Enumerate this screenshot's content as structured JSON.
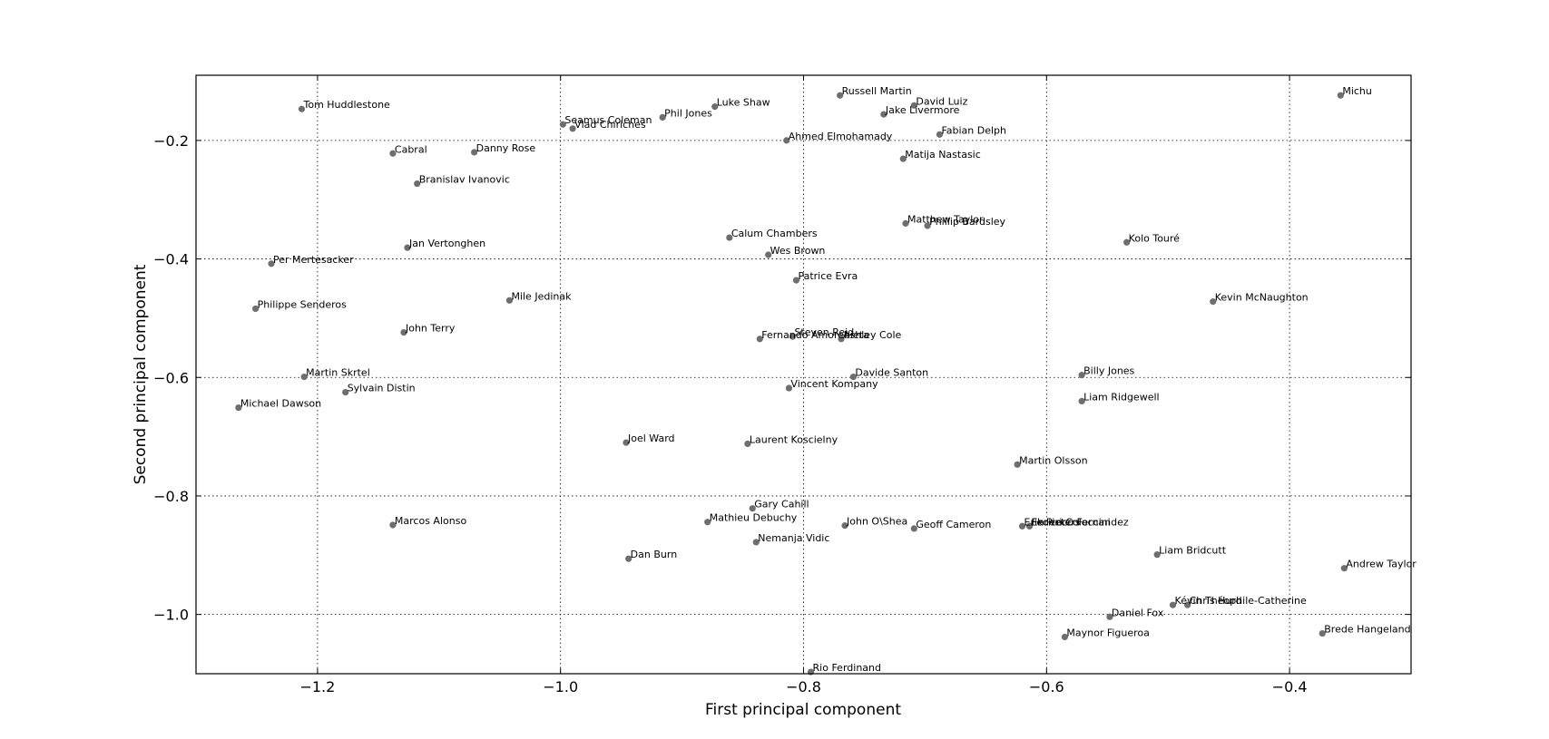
{
  "chart_data": {
    "type": "scatter",
    "title": "",
    "xlabel": "First principal component",
    "ylabel": "Second principal component",
    "xlim": [
      -1.3,
      -0.3
    ],
    "ylim": [
      -1.1,
      -0.09
    ],
    "xticks": [
      -1.2,
      -1.0,
      -0.8,
      -0.6,
      -0.4
    ],
    "yticks": [
      -0.2,
      -0.4,
      -0.6,
      -0.8,
      -1.0
    ],
    "xtick_labels": [
      "−1.2",
      "−1.0",
      "−0.8",
      "−0.6",
      "−0.4"
    ],
    "ytick_labels": [
      "−0.2",
      "−0.4",
      "−0.6",
      "−0.8",
      "−1.0"
    ],
    "grid": true,
    "marker_color": "#6e6e6e",
    "points": [
      {
        "label": "Tom Huddlestone",
        "x": -1.213,
        "y": -0.147
      },
      {
        "label": "Luke Shaw",
        "x": -0.873,
        "y": -0.143
      },
      {
        "label": "Russell Martin",
        "x": -0.77,
        "y": -0.124
      },
      {
        "label": "David Luiz",
        "x": -0.709,
        "y": -0.141
      },
      {
        "label": "Jake Livermore",
        "x": -0.734,
        "y": -0.156
      },
      {
        "label": "Michu",
        "x": -0.358,
        "y": -0.124
      },
      {
        "label": "Phil Jones",
        "x": -0.916,
        "y": -0.161
      },
      {
        "label": "Seamus Coleman",
        "x": -0.998,
        "y": -0.173
      },
      {
        "label": "Vlad Chiriches",
        "x": -0.99,
        "y": -0.18
      },
      {
        "label": "Fabian Delph",
        "x": -0.688,
        "y": -0.19
      },
      {
        "label": "Ahmed Elmohamady",
        "x": -0.814,
        "y": -0.2
      },
      {
        "label": "Cabral",
        "x": -1.138,
        "y": -0.222
      },
      {
        "label": "Danny Rose",
        "x": -1.071,
        "y": -0.22
      },
      {
        "label": "Matija Nastasic",
        "x": -0.718,
        "y": -0.231
      },
      {
        "label": "Branislav Ivanovic",
        "x": -1.118,
        "y": -0.273
      },
      {
        "label": "Matthew Taylor",
        "x": -0.716,
        "y": -0.34
      },
      {
        "label": "Phillip Bardsley",
        "x": -0.698,
        "y": -0.344
      },
      {
        "label": "Calum Chambers",
        "x": -0.861,
        "y": -0.364
      },
      {
        "label": "Kolo Touré",
        "x": -0.534,
        "y": -0.372
      },
      {
        "label": "Jan Vertonghen",
        "x": -1.126,
        "y": -0.381
      },
      {
        "label": "Wes Brown",
        "x": -0.829,
        "y": -0.393
      },
      {
        "label": "Per Mertesacker",
        "x": -1.238,
        "y": -0.408
      },
      {
        "label": "Patrice Evra",
        "x": -0.806,
        "y": -0.436
      },
      {
        "label": "Mile Jedinak",
        "x": -1.042,
        "y": -0.47
      },
      {
        "label": "Kevin McNaughton",
        "x": -0.463,
        "y": -0.472
      },
      {
        "label": "Philippe Senderos",
        "x": -1.251,
        "y": -0.484
      },
      {
        "label": "John Terry",
        "x": -1.129,
        "y": -0.524
      },
      {
        "label": "Steven Reid",
        "x": -0.809,
        "y": -0.531
      },
      {
        "label": "Fernando Amorebieta",
        "x": -0.836,
        "y": -0.535
      },
      {
        "label": "Ashley Cole",
        "x": -0.769,
        "y": -0.535
      },
      {
        "label": "Billy Jones",
        "x": -0.571,
        "y": -0.596
      },
      {
        "label": "Martin Skrtel",
        "x": -1.211,
        "y": -0.599
      },
      {
        "label": "Davide Santon",
        "x": -0.759,
        "y": -0.599
      },
      {
        "label": "Vincent Kompany",
        "x": -0.812,
        "y": -0.618
      },
      {
        "label": "Sylvain Distin",
        "x": -1.177,
        "y": -0.625
      },
      {
        "label": "Liam Ridgewell",
        "x": -0.571,
        "y": -0.64
      },
      {
        "label": "Michael Dawson",
        "x": -1.265,
        "y": -0.651
      },
      {
        "label": "Joel Ward",
        "x": -0.946,
        "y": -0.71
      },
      {
        "label": "Laurent Koscielny",
        "x": -0.846,
        "y": -0.712
      },
      {
        "label": "Martin Olsson",
        "x": -0.624,
        "y": -0.747
      },
      {
        "label": "Gary Cahill",
        "x": -0.842,
        "y": -0.821
      },
      {
        "label": "Mathieu Debuchy",
        "x": -0.879,
        "y": -0.844
      },
      {
        "label": "Marcos Alonso",
        "x": -1.138,
        "y": -0.849
      },
      {
        "label": "John O\\Shea",
        "x": -0.766,
        "y": -0.85
      },
      {
        "label": "Erik Pieters",
        "x": -0.62,
        "y": -0.851
      },
      {
        "label": "Federico Fernandez",
        "x": -0.614,
        "y": -0.851
      },
      {
        "label": "Enrico Coloccini",
        "x": -0.614,
        "y": -0.851
      },
      {
        "label": "Geoff Cameron",
        "x": -0.709,
        "y": -0.855
      },
      {
        "label": "Nemanja Vidic",
        "x": -0.839,
        "y": -0.878
      },
      {
        "label": "Liam Bridcutt",
        "x": -0.509,
        "y": -0.899
      },
      {
        "label": "Dan Burn",
        "x": -0.944,
        "y": -0.906
      },
      {
        "label": "Andrew Taylor",
        "x": -0.355,
        "y": -0.922
      },
      {
        "label": "Kévin Théophile-Catherine",
        "x": -0.496,
        "y": -0.984
      },
      {
        "label": "Chris Hurd",
        "x": -0.484,
        "y": -0.984
      },
      {
        "label": "Daniel Fox",
        "x": -0.548,
        "y": -1.004
      },
      {
        "label": "Brede Hangeland",
        "x": -0.373,
        "y": -1.032
      },
      {
        "label": "Maynor Figueroa",
        "x": -0.585,
        "y": -1.038
      },
      {
        "label": "Rio Ferdinand",
        "x": -0.794,
        "y": -1.097
      }
    ]
  }
}
